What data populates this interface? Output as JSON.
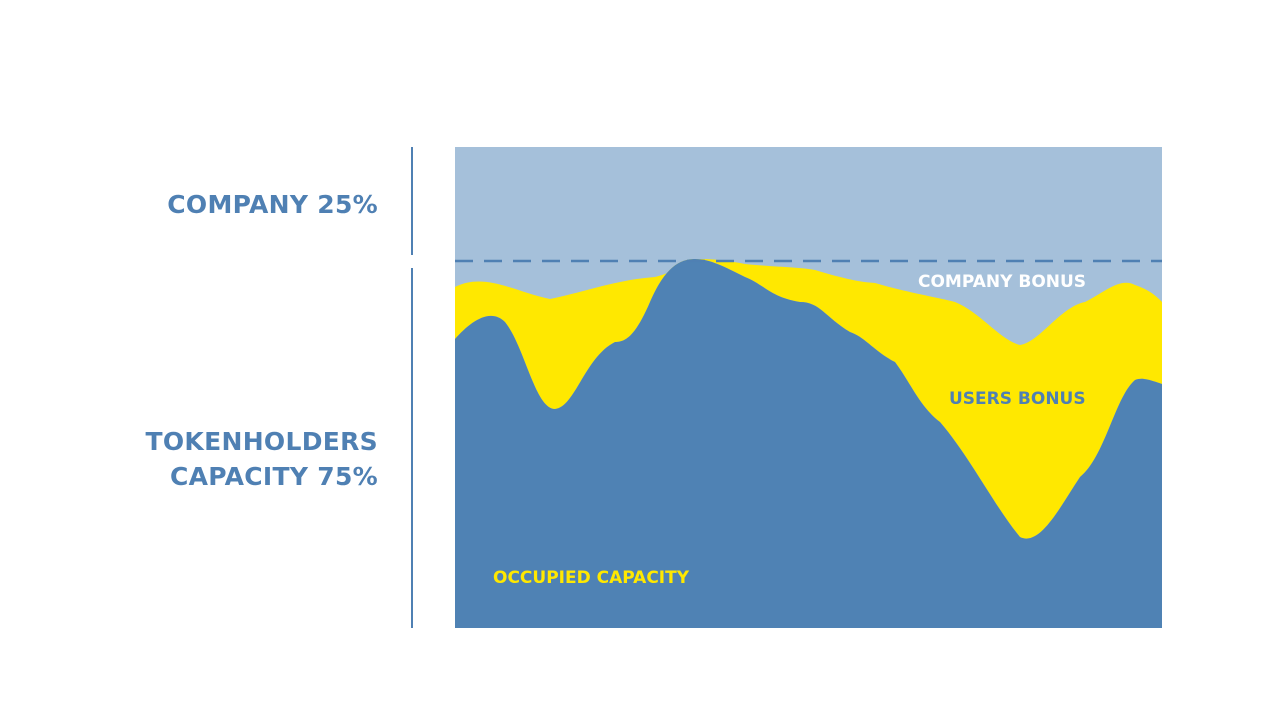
{
  "labels": {
    "company_share": "COMPANY 25%",
    "tokenholders_line1": "TOKENHOLDERS",
    "tokenholders_line2": "CAPACITY 75%"
  },
  "areas": {
    "company_bonus": "COMPANY BONUS",
    "users_bonus": "USERS BONUS",
    "occupied_capacity": "OCCUPIED CAPACITY"
  },
  "colors": {
    "company_area": "#a5c0da",
    "users_bonus_area": "#ffe800",
    "occupied_area": "#4f82b4",
    "divider_dashed": "#4f80b3",
    "label_blue": "#4f80b3",
    "label_white": "#ffffff",
    "label_yellow": "#ffe800"
  }
}
